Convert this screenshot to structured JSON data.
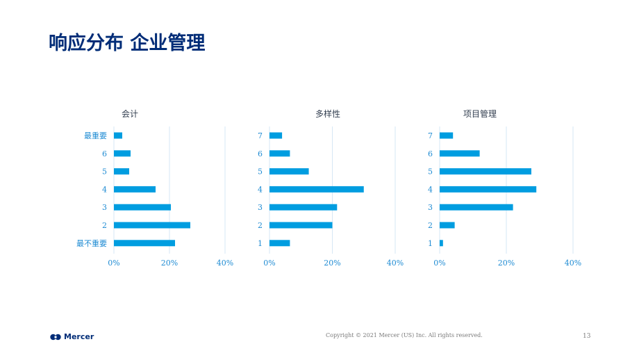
{
  "page": {
    "title": "响应分布 企业管理"
  },
  "chart_data": [
    {
      "type": "bar",
      "orientation": "horizontal",
      "title": "会计",
      "categories": [
        "最重要",
        "6",
        "5",
        "4",
        "3",
        "2",
        "最不重要"
      ],
      "values": [
        3,
        6,
        5.5,
        15,
        20.5,
        27.5,
        22
      ],
      "xlim": [
        0,
        40
      ],
      "xticks": [
        "0%",
        "20%",
        "40%"
      ],
      "grid": true
    },
    {
      "type": "bar",
      "orientation": "horizontal",
      "title": "多样性",
      "categories": [
        "7",
        "6",
        "5",
        "4",
        "3",
        "2",
        "1"
      ],
      "values": [
        4,
        6.5,
        12.5,
        30,
        21.5,
        20,
        6.5
      ],
      "xlim": [
        0,
        40
      ],
      "xticks": [
        "0%",
        "20%",
        "40%"
      ],
      "grid": true
    },
    {
      "type": "bar",
      "orientation": "horizontal",
      "title": "项目管理",
      "categories": [
        "7",
        "6",
        "5",
        "4",
        "3",
        "2",
        "1"
      ],
      "values": [
        4,
        12,
        27.5,
        29,
        22,
        4.5,
        1
      ],
      "xlim": [
        0,
        40
      ],
      "xticks": [
        "0%",
        "20%",
        "40%"
      ],
      "grid": true
    }
  ],
  "footer": {
    "logo_text": "Mercer",
    "logo_icon": "mercer-logo-icon",
    "copyright": "Copyright © 2021 Mercer (US) Inc. All rights reserved.",
    "page_number": "13"
  },
  "colors": {
    "title": "#002c77",
    "bar": "#009de0",
    "label": "#1e8bd3",
    "grid": "#d6e7f5"
  }
}
